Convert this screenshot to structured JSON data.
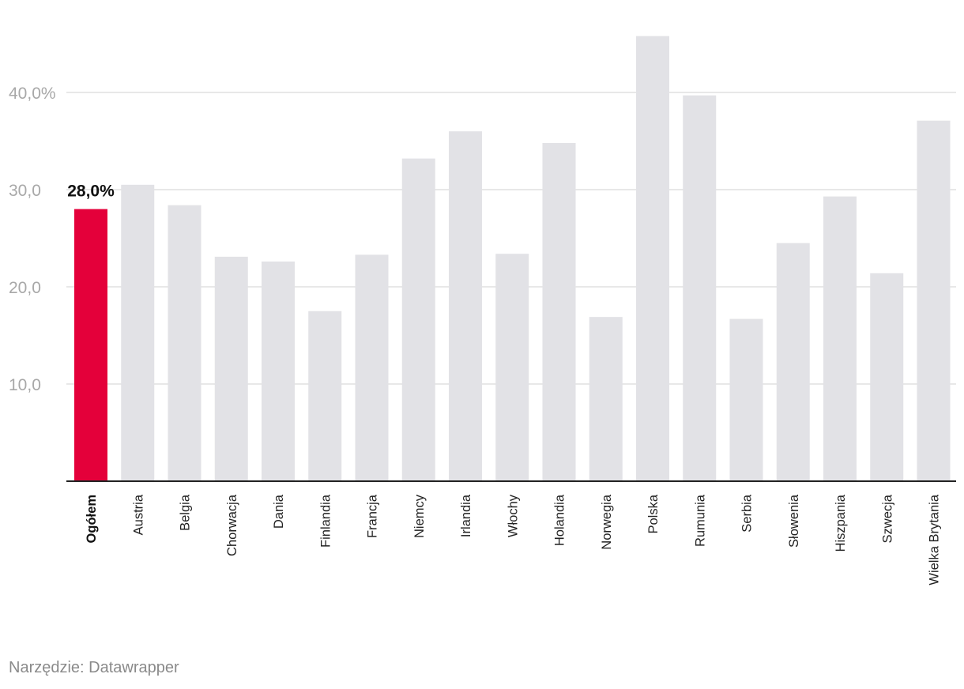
{
  "chart_data": {
    "type": "bar",
    "categories": [
      "Ogółem",
      "Austria",
      "Belgia",
      "Chorwacja",
      "Dania",
      "Finlandia",
      "Francja",
      "Niemcy",
      "Irlandia",
      "Włochy",
      "Holandia",
      "Norwegia",
      "Polska",
      "Rumunia",
      "Serbia",
      "Słowenia",
      "Hiszpania",
      "Szwecja",
      "Wielka Brytania"
    ],
    "values": [
      28.0,
      30.5,
      28.4,
      23.1,
      22.6,
      17.5,
      23.3,
      33.2,
      36.0,
      23.4,
      34.8,
      16.9,
      45.8,
      39.7,
      16.7,
      24.5,
      29.3,
      21.4,
      37.1
    ],
    "highlight_index": 0,
    "highlight_label": "28,0%",
    "ylim": [
      0,
      49
    ],
    "yticks": [
      {
        "value": 10,
        "label": "10,0"
      },
      {
        "value": 20,
        "label": "20,0"
      },
      {
        "value": 30,
        "label": "30,0"
      },
      {
        "value": 40,
        "label": "40,0%"
      }
    ],
    "grid": true,
    "colors": {
      "bar": "#e2e2e6",
      "highlight": "#e4003a",
      "grid": "#e0e0e0",
      "baseline": "#222222"
    }
  },
  "footer": {
    "source": "Narzędzie: Datawrapper"
  }
}
